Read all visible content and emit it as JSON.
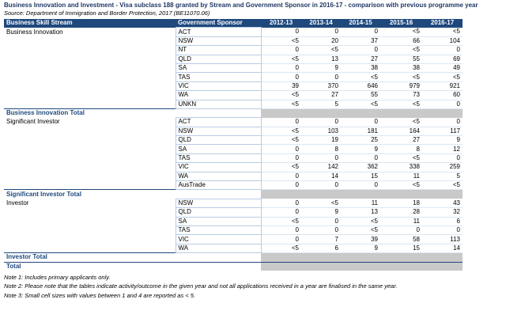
{
  "title": "Business Innovation and Investment - Visa subclass 188 granted by Stream and Government Sponsor in 2016-17 - comparison with previous programme year",
  "source": "Source: Department of Immigration and Border Protection, 2017 (BE11070.06)",
  "table": {
    "header": [
      "Business Skill Stream",
      "Government Sponsor",
      "2012-13",
      "2013-14",
      "2014-15",
      "2015-16",
      "2016-17"
    ],
    "groups": [
      {
        "stream": "Business Innovation",
        "total": "Business Innovation Total",
        "rows": [
          [
            "ACT",
            "0",
            "0",
            "0",
            "<5",
            "<5"
          ],
          [
            "NSW",
            "<5",
            "20",
            "37",
            "66",
            "104"
          ],
          [
            "NT",
            "0",
            "<5",
            "0",
            "<5",
            "0"
          ],
          [
            "QLD",
            "<5",
            "13",
            "27",
            "55",
            "69"
          ],
          [
            "SA",
            "0",
            "9",
            "38",
            "38",
            "49"
          ],
          [
            "TAS",
            "0",
            "0",
            "<5",
            "<5",
            "<5"
          ],
          [
            "VIC",
            "39",
            "370",
            "646",
            "979",
            "921"
          ],
          [
            "WA",
            "<5",
            "27",
            "55",
            "73",
            "60"
          ],
          [
            "UNKN",
            "<5",
            "5",
            "<5",
            "<5",
            "0"
          ]
        ]
      },
      {
        "stream": "Significant Investor",
        "total": "Significant Investor Total",
        "rows": [
          [
            "ACT",
            "0",
            "0",
            "0",
            "<5",
            "0"
          ],
          [
            "NSW",
            "<5",
            "103",
            "181",
            "164",
            "117"
          ],
          [
            "QLD",
            "<5",
            "19",
            "25",
            "27",
            "9"
          ],
          [
            "SA",
            "0",
            "8",
            "9",
            "8",
            "12"
          ],
          [
            "TAS",
            "0",
            "0",
            "0",
            "<5",
            "0"
          ],
          [
            "VIC",
            "<5",
            "142",
            "362",
            "338",
            "259"
          ],
          [
            "WA",
            "0",
            "14",
            "15",
            "11",
            "5"
          ],
          [
            "AusTrade",
            "0",
            "0",
            "0",
            "<5",
            "<5"
          ]
        ]
      },
      {
        "stream": "Investor",
        "total": "Investor Total",
        "rows": [
          [
            "NSW",
            "0",
            "<5",
            "11",
            "18",
            "43"
          ],
          [
            "QLD",
            "0",
            "9",
            "13",
            "28",
            "32"
          ],
          [
            "SA",
            "<5",
            "0",
            "<5",
            "11",
            "6"
          ],
          [
            "TAS",
            "0",
            "0",
            "<5",
            "0",
            "0"
          ],
          [
            "VIC",
            "0",
            "7",
            "39",
            "58",
            "113"
          ],
          [
            "WA",
            "<5",
            "6",
            "9",
            "15",
            "14"
          ]
        ]
      }
    ],
    "grand_total": "Total"
  },
  "notes": [
    "Note 1: Includes primary applicants only.",
    "Note 2: Please note that the tables indicate activity/outcome in the given year and not all applications received in a year are finalised in the same year.",
    "Note 3: Small cell sizes with values between 1 and 4 are reported as < 5."
  ]
}
